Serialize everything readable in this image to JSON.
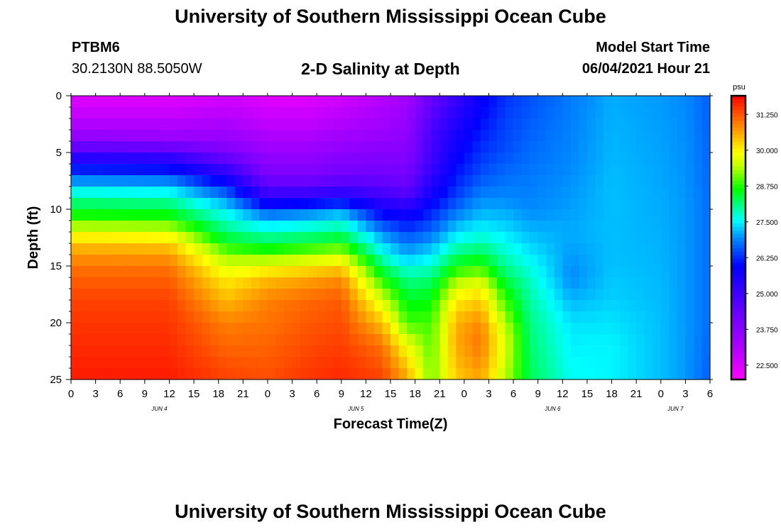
{
  "header": {
    "title": "University of Southern Mississippi Ocean Cube",
    "station_id": "PTBM6",
    "coordinates": "30.2130N  88.5050W",
    "subtitle": "2-D Salinity at Depth",
    "model_start_label": "Model Start Time",
    "model_start_value": "06/04/2021 Hour 21"
  },
  "footer": {
    "title": "University of Southern Mississippi Ocean Cube"
  },
  "chart_data": {
    "type": "heatmap",
    "title": "2-D Salinity at Depth",
    "xlabel": "Forecast Time(Z)",
    "ylabel": "Depth (ft)",
    "x_tick_labels": [
      "0",
      "3",
      "6",
      "9",
      "12",
      "15",
      "18",
      "21",
      "0",
      "3",
      "6",
      "9",
      "12",
      "15",
      "18",
      "21",
      "0",
      "3",
      "6",
      "9",
      "12",
      "15",
      "18",
      "21",
      "0",
      "3",
      "6"
    ],
    "date_labels": [
      "JUN 4",
      "JUN 5",
      "JUN 6",
      "JUN 7"
    ],
    "x_range_hours": [
      0,
      78
    ],
    "y_tick_labels": [
      "0",
      "5",
      "10",
      "15",
      "20",
      "25"
    ],
    "ylim": [
      0,
      25
    ],
    "y_inverted": true,
    "colorbar": {
      "unit": "psu",
      "min": 22.0,
      "max": 31.9,
      "tick_values": [
        22.5,
        23.75,
        25.0,
        26.25,
        27.5,
        28.75,
        30.0,
        31.25
      ],
      "tick_labels": [
        "22.500",
        "23.750",
        "25.000",
        "26.250",
        "27.500",
        "28.750",
        "30.000",
        "31.250"
      ]
    },
    "salinity_columns": [
      {
        "hour": 0,
        "depth": [
          0,
          2,
          4,
          5,
          6,
          7,
          8,
          9,
          10,
          11,
          12,
          13,
          15,
          18,
          25
        ],
        "psu": [
          22.4,
          22.9,
          23.8,
          25.0,
          25.7,
          26.6,
          27.3,
          28.0,
          28.4,
          29.0,
          29.7,
          30.4,
          31.0,
          31.4,
          31.7
        ]
      },
      {
        "hour": 12,
        "depth": [
          0,
          2,
          4,
          5,
          6,
          7,
          8,
          9,
          10,
          11,
          12,
          13,
          15,
          18,
          25
        ],
        "psu": [
          22.4,
          22.9,
          23.6,
          24.9,
          25.6,
          26.5,
          27.2,
          27.9,
          28.3,
          28.9,
          29.6,
          30.3,
          31.0,
          31.4,
          31.7
        ]
      },
      {
        "hour": 19,
        "depth": [
          0,
          3,
          5,
          6,
          7,
          8,
          9,
          10,
          11,
          12,
          13,
          14,
          16,
          20,
          25
        ],
        "psu": [
          22.6,
          23.3,
          24.0,
          24.8,
          25.4,
          26.2,
          26.9,
          27.4,
          27.8,
          28.1,
          28.6,
          29.2,
          30.0,
          30.9,
          31.4
        ]
      },
      {
        "hour": 24,
        "depth": [
          0,
          3,
          5,
          7,
          8,
          9,
          10,
          11,
          12,
          13,
          14,
          15,
          16,
          18,
          25
        ],
        "psu": [
          22.4,
          23.0,
          23.5,
          24.0,
          24.6,
          25.3,
          26.4,
          27.2,
          27.8,
          28.3,
          29.0,
          29.8,
          30.4,
          30.9,
          31.3
        ]
      },
      {
        "hour": 29,
        "depth": [
          0,
          3,
          5,
          7,
          8,
          9,
          10,
          11,
          12,
          13,
          14,
          15,
          16,
          18,
          25
        ],
        "psu": [
          22.4,
          23.0,
          23.5,
          24.0,
          24.6,
          25.4,
          26.6,
          27.4,
          27.9,
          28.5,
          29.3,
          30.0,
          30.6,
          31.1,
          31.5
        ]
      },
      {
        "hour": 33,
        "depth": [
          0,
          3,
          5,
          7,
          8,
          9,
          10,
          11,
          12,
          13,
          14,
          15,
          16,
          18,
          25
        ],
        "psu": [
          22.6,
          23.2,
          23.7,
          24.2,
          24.8,
          25.6,
          26.9,
          27.6,
          28.1,
          28.7,
          29.5,
          30.2,
          30.8,
          31.2,
          31.6
        ]
      },
      {
        "hour": 38,
        "depth": [
          0,
          3,
          5,
          7,
          8,
          9,
          10,
          11,
          12,
          13,
          14,
          15,
          16,
          18,
          20,
          22,
          25
        ],
        "psu": [
          23.0,
          23.4,
          23.8,
          24.2,
          24.6,
          25.1,
          25.7,
          26.3,
          26.9,
          27.3,
          27.7,
          28.2,
          28.7,
          29.6,
          30.4,
          31.0,
          31.4
        ]
      },
      {
        "hour": 41,
        "depth": [
          0,
          5,
          8,
          9,
          10,
          11,
          12,
          13,
          14,
          15,
          16,
          18,
          20,
          22,
          24,
          25
        ],
        "psu": [
          23.3,
          23.8,
          24.3,
          24.8,
          25.5,
          26.0,
          26.4,
          26.8,
          27.1,
          27.6,
          28.0,
          28.5,
          28.9,
          29.8,
          30.4,
          30.6
        ]
      },
      {
        "hour": 44,
        "depth": [
          0,
          3,
          6,
          8,
          10,
          12,
          14,
          16,
          18,
          20,
          25
        ],
        "psu": [
          24.3,
          24.8,
          25.0,
          25.5,
          26.1,
          26.7,
          27.4,
          28.1,
          28.6,
          28.9,
          29.1
        ]
      },
      {
        "hour": 47,
        "depth": [
          0,
          4,
          7,
          9,
          11,
          13,
          15,
          17,
          19,
          21,
          23,
          25
        ],
        "psu": [
          25.1,
          25.7,
          26.1,
          26.4,
          27.0,
          27.7,
          28.6,
          29.7,
          30.3,
          30.6,
          30.5,
          30.3
        ]
      },
      {
        "hour": 50,
        "depth": [
          0,
          4,
          7,
          9,
          11,
          13,
          15,
          17,
          19,
          21,
          23,
          25
        ],
        "psu": [
          25.8,
          26.2,
          26.5,
          26.9,
          27.3,
          27.9,
          28.8,
          30.0,
          30.6,
          31.0,
          30.9,
          30.6
        ]
      },
      {
        "hour": 53,
        "depth": [
          0,
          5,
          9,
          12,
          15,
          17,
          19,
          21,
          23,
          25
        ],
        "psu": [
          26.3,
          26.5,
          26.9,
          27.4,
          28.0,
          28.6,
          29.1,
          29.6,
          29.6,
          29.4
        ]
      },
      {
        "hour": 56,
        "depth": [
          0,
          5,
          10,
          13,
          16,
          20,
          25
        ],
        "psu": [
          26.5,
          26.7,
          26.9,
          27.3,
          27.8,
          28.1,
          28.3
        ]
      },
      {
        "hour": 61,
        "depth": [
          0,
          6,
          12,
          16,
          20,
          25
        ],
        "psu": [
          26.8,
          26.9,
          27.1,
          26.9,
          27.4,
          27.6
        ]
      },
      {
        "hour": 66,
        "depth": [
          0,
          8,
          14,
          18,
          22,
          25
        ],
        "psu": [
          27.1,
          27.2,
          27.2,
          27.3,
          27.5,
          27.5
        ]
      },
      {
        "hour": 72,
        "depth": [
          0,
          10,
          20,
          25
        ],
        "psu": [
          27.0,
          27.1,
          27.2,
          27.2
        ]
      },
      {
        "hour": 75,
        "depth": [
          0,
          10,
          20,
          25
        ],
        "psu": [
          26.9,
          27.0,
          27.0,
          27.0
        ]
      },
      {
        "hour": 78,
        "depth": [
          0,
          10,
          20,
          25
        ],
        "psu": [
          26.6,
          26.7,
          26.7,
          26.6
        ]
      }
    ]
  }
}
